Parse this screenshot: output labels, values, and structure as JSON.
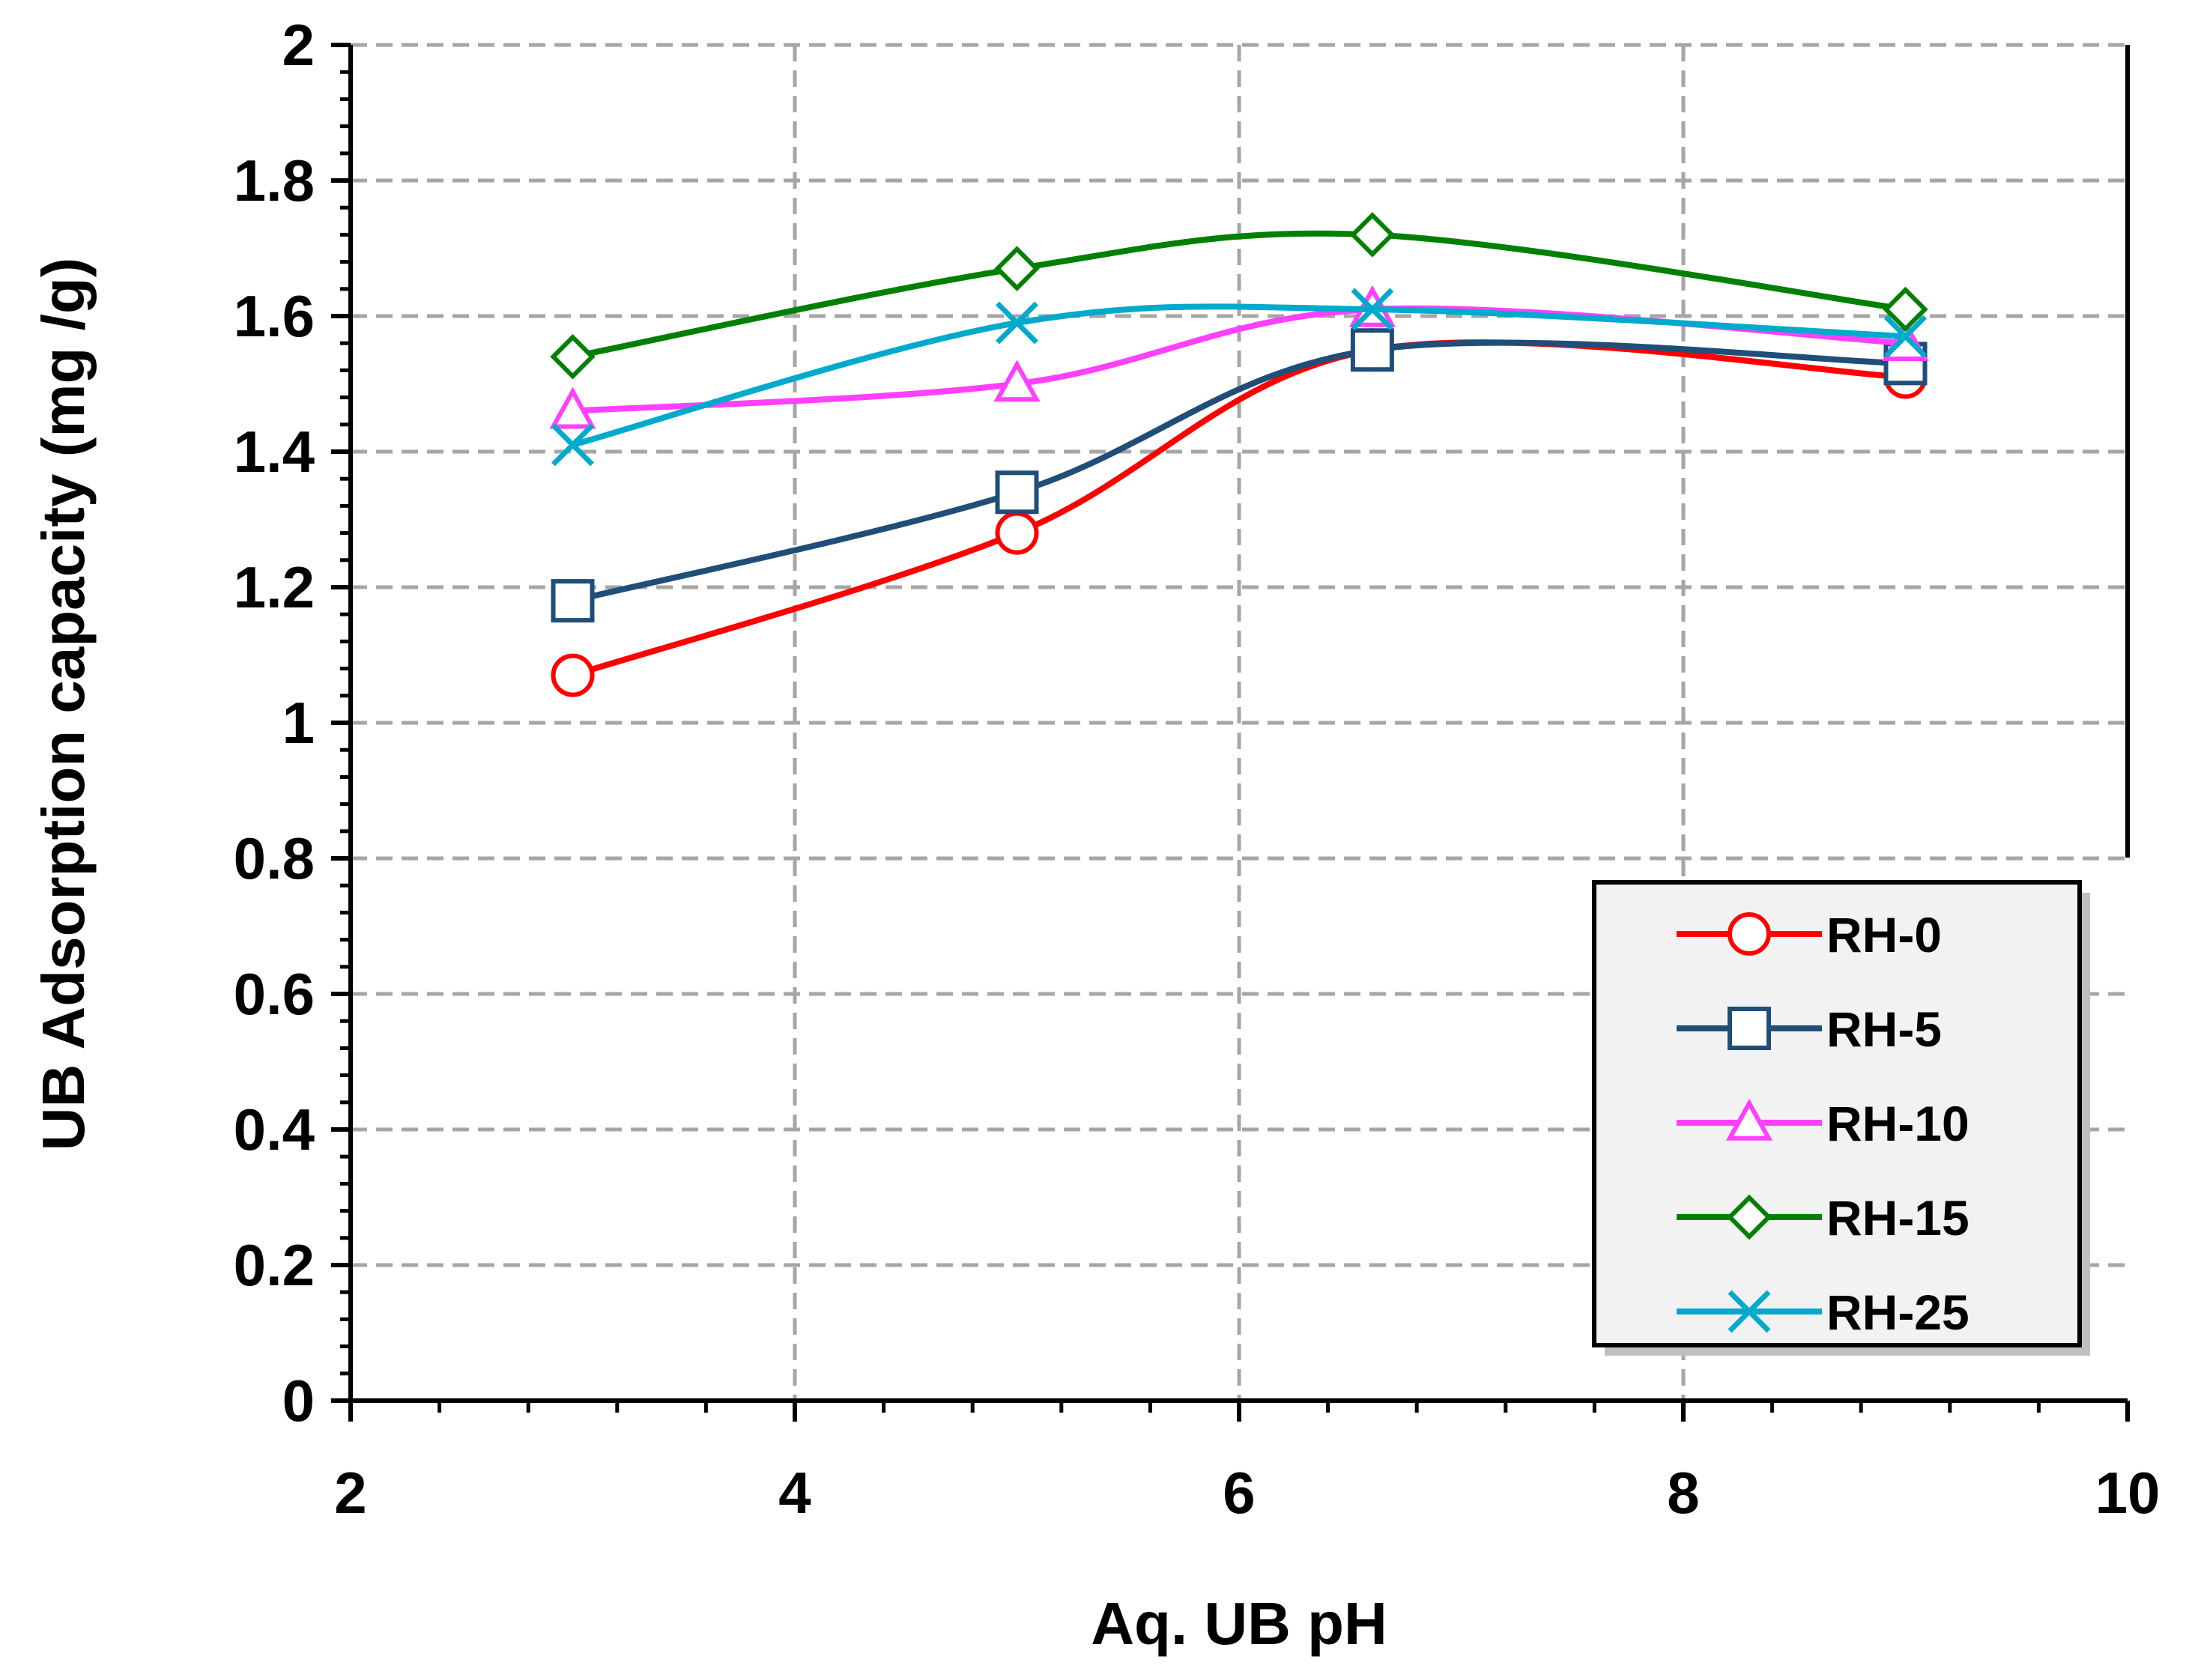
{
  "chart_data": {
    "type": "line",
    "title": "",
    "xlabel": "Aq. UB pH",
    "ylabel": "UB  Adsorption capacity  (mg /g)",
    "xlim": [
      2,
      10
    ],
    "ylim": [
      0,
      2
    ],
    "x_ticks": [
      "2",
      "4",
      "6",
      "8",
      "10"
    ],
    "y_ticks": [
      "0",
      "0.2",
      "0.4",
      "0.6",
      "0.8",
      "1",
      "1.2",
      "1.4",
      "1.6",
      "1.8",
      "2"
    ],
    "grid": true,
    "legend_position": "lower-right",
    "x": [
      3,
      5,
      6.6,
      9
    ],
    "series": [
      {
        "name": "RH-0",
        "marker": "circle",
        "color": "#ff0000",
        "values": [
          1.07,
          1.28,
          1.55,
          1.51
        ]
      },
      {
        "name": "RH-5",
        "marker": "square",
        "color": "#1f4e79",
        "values": [
          1.18,
          1.34,
          1.55,
          1.53
        ]
      },
      {
        "name": "RH-10",
        "marker": "triangle",
        "color": "#ff40ff",
        "values": [
          1.46,
          1.5,
          1.61,
          1.56
        ]
      },
      {
        "name": "RH-15",
        "marker": "diamond",
        "color": "#008000",
        "values": [
          1.54,
          1.67,
          1.72,
          1.61
        ]
      },
      {
        "name": "RH-25",
        "marker": "x",
        "color": "#00aacc",
        "values": [
          1.41,
          1.59,
          1.61,
          1.57
        ]
      }
    ]
  }
}
